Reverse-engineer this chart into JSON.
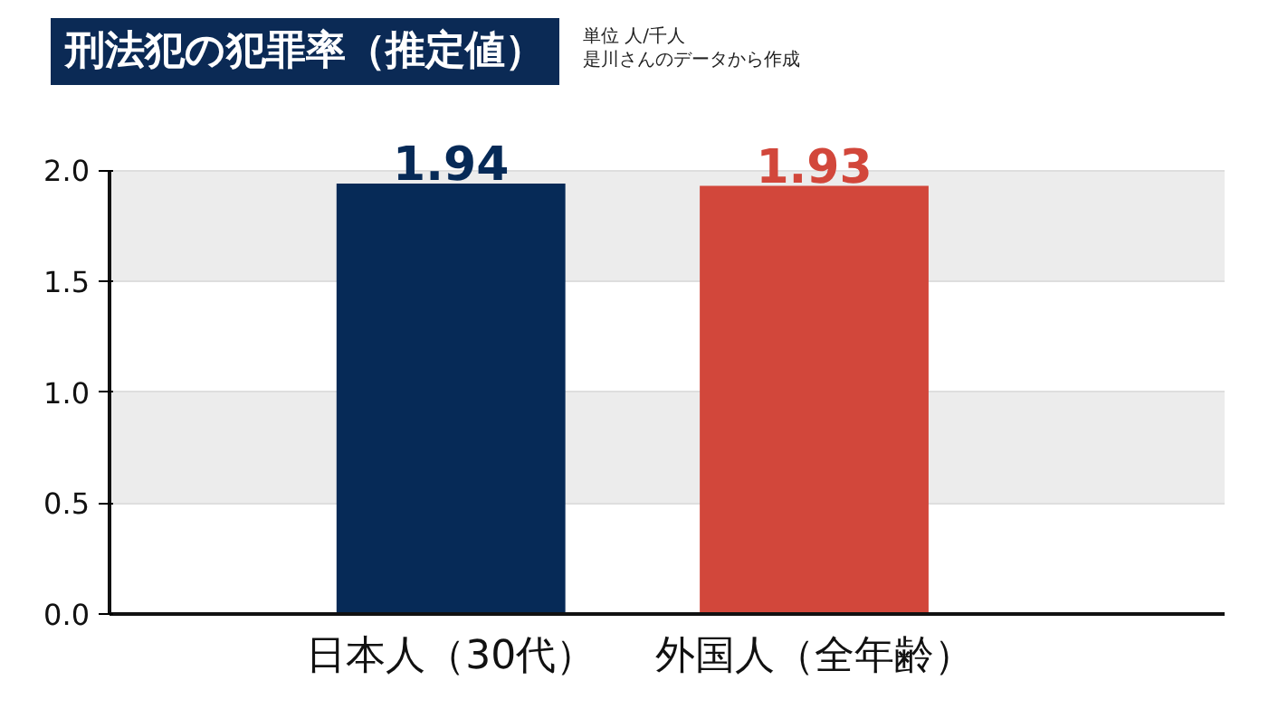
{
  "chart_data": {
    "type": "bar",
    "title": "刑法犯の犯罪率（推定値）",
    "annotations": [
      "単位 人/千人",
      "是川さんのデータから作成"
    ],
    "categories": [
      "日本人（30代）",
      "外国人（全年齢）"
    ],
    "values": [
      1.94,
      1.93
    ],
    "colors": [
      "#062a57",
      "#d2473b"
    ],
    "data_labels": true,
    "ylim": [
      0,
      2.0
    ],
    "yticks": [
      {
        "value": 0,
        "label": "0.0"
      },
      0.5,
      {
        "value": 1,
        "label": "1.0"
      },
      1.5,
      {
        "value": 2,
        "label": "2.0"
      }
    ],
    "grid": "y"
  }
}
